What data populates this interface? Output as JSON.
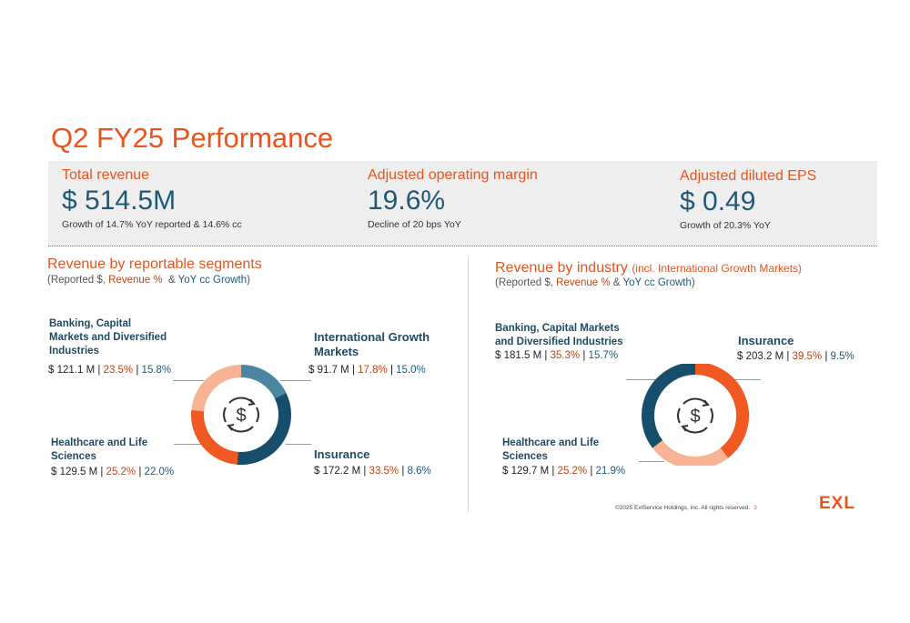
{
  "page": {
    "title": "Q2 FY25 Performance"
  },
  "kpis": [
    {
      "label": "Total revenue",
      "value": "$ 514.5M",
      "note": "Growth of 14.7% YoY reported & 14.6% cc"
    },
    {
      "label": "Adjusted operating margin",
      "value": "19.6%",
      "note": "Decline of 20 bps YoY"
    },
    {
      "label": "Adjusted diluted EPS",
      "value": "$ 0.49",
      "note": "Growth of 20.3% YoY"
    }
  ],
  "segments": {
    "title": "Revenue by reportable segments",
    "sub_open": "(Reported $, ",
    "sub_rev": "Revenue %",
    "sub_amp": "  & ",
    "sub_yoy": "YoY cc Growth",
    "sub_close": ")",
    "labels": [
      {
        "name": "Banking, Capital Markets and Diversified Industries",
        "amount": "$ 121.1 M",
        "pct": "23.5%",
        "growth": "15.8%"
      },
      {
        "name": "International Growth Markets",
        "amount": "$ 91.7 M",
        "pct": "17.8%",
        "growth": "15.0%"
      },
      {
        "name": "Healthcare and Life Sciences",
        "amount": "$ 129.5 M",
        "pct": "25.2%",
        "growth": "22.0%"
      },
      {
        "name": "Insurance",
        "amount": "$ 172.2 M",
        "pct": "33.5%",
        "growth": "8.6%"
      }
    ]
  },
  "industry": {
    "title": "Revenue by industry",
    "title_note": "(incl. International Growth Markets)",
    "sub_open": "(Reported $, ",
    "sub_rev": "Revenue %",
    "sub_amp": " & ",
    "sub_yoy": "YoY cc Growth",
    "sub_close": ")",
    "labels": [
      {
        "name": "Banking, Capital Markets and Diversified Industries",
        "amount": "$ 181.5 M",
        "pct": "35.3%",
        "growth": "15.7%"
      },
      {
        "name": "Insurance",
        "amount": "$ 203.2 M",
        "pct": "39.5%",
        "growth": "9.5%"
      },
      {
        "name": "Healthcare and Life Sciences",
        "amount": "$ 129.7 M",
        "pct": "25.2%",
        "growth": "21.9%"
      }
    ]
  },
  "chart_data": [
    {
      "type": "pie",
      "title": "Revenue by reportable segments",
      "categories": [
        "International Growth Markets",
        "Insurance",
        "Healthcare and Life Sciences",
        "Banking, Capital Markets and Diversified Industries"
      ],
      "values": [
        17.8,
        33.5,
        25.2,
        23.5
      ],
      "colors": [
        "#4A86A2",
        "#174E6B",
        "#F05A22",
        "#F7B394"
      ],
      "donut": true
    },
    {
      "type": "pie",
      "title": "Revenue by industry",
      "categories": [
        "Insurance",
        "Healthcare and Life Sciences",
        "Banking, Capital Markets and Diversified Industries"
      ],
      "values": [
        39.5,
        25.2,
        35.3
      ],
      "colors": [
        "#F05A22",
        "#F7B394",
        "#174E6B"
      ],
      "donut": true
    }
  ],
  "footer": {
    "copyright": "©2025 ExlService Holdings, Inc. All rights reserved.",
    "page_number": "3"
  },
  "logo": {
    "text": "EXL"
  },
  "icons": {
    "center": "dollar-cycle-icon"
  }
}
